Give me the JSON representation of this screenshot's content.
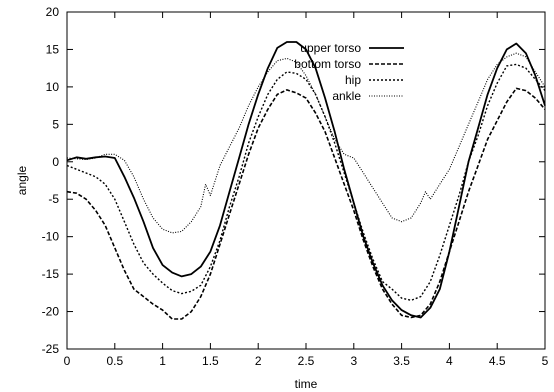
{
  "chart_data": {
    "type": "line",
    "xlabel": "time",
    "ylabel": "angle",
    "xlim": [
      0,
      5
    ],
    "ylim": [
      -25,
      20
    ],
    "xticks": [
      0,
      0.5,
      1,
      1.5,
      2,
      2.5,
      3,
      3.5,
      4,
      4.5,
      5
    ],
    "yticks": [
      -25,
      -20,
      -15,
      -10,
      -5,
      0,
      5,
      10,
      15,
      20
    ],
    "xtick_labels": [
      "0",
      "0.5",
      "1",
      "1.5",
      "2",
      "2.5",
      "3",
      "3.5",
      "4",
      "4.5",
      "5"
    ],
    "ytick_labels": [
      "-25",
      "-20",
      "-15",
      "-10",
      "-5",
      "0",
      "5",
      "10",
      "15",
      "20"
    ],
    "grid": false,
    "legend_position": "top-right",
    "series": [
      {
        "name": "upper torso",
        "style": "solid",
        "x": [
          0,
          0.1,
          0.2,
          0.3,
          0.4,
          0.5,
          0.6,
          0.7,
          0.8,
          0.9,
          1.0,
          1.1,
          1.2,
          1.3,
          1.4,
          1.5,
          1.6,
          1.7,
          1.8,
          1.9,
          2.0,
          2.1,
          2.2,
          2.3,
          2.4,
          2.5,
          2.6,
          2.7,
          2.8,
          2.9,
          3.0,
          3.1,
          3.2,
          3.3,
          3.4,
          3.5,
          3.6,
          3.7,
          3.8,
          3.9,
          4.0,
          4.1,
          4.2,
          4.3,
          4.4,
          4.5,
          4.6,
          4.7,
          4.8,
          4.9,
          5.0
        ],
        "y": [
          0.2,
          0.6,
          0.4,
          0.6,
          0.7,
          0.5,
          -2,
          -4.8,
          -8,
          -11.5,
          -13.8,
          -14.8,
          -15.3,
          -15,
          -14,
          -12,
          -8.5,
          -4,
          0.5,
          5,
          9,
          12.5,
          15.2,
          16,
          16,
          15,
          12.5,
          8.5,
          4,
          -1,
          -5.5,
          -10,
          -13.5,
          -16.5,
          -18.5,
          -19.8,
          -20.5,
          -20.8,
          -19.5,
          -17,
          -12,
          -6,
          0,
          4.5,
          9,
          12.5,
          15,
          15.8,
          14.5,
          11.5,
          7.5
        ]
      },
      {
        "name": "bottom torso",
        "style": "dashed",
        "x": [
          0,
          0.1,
          0.2,
          0.3,
          0.4,
          0.5,
          0.6,
          0.7,
          0.8,
          0.9,
          1.0,
          1.1,
          1.2,
          1.3,
          1.4,
          1.5,
          1.6,
          1.7,
          1.8,
          1.9,
          2.0,
          2.1,
          2.2,
          2.3,
          2.4,
          2.5,
          2.6,
          2.7,
          2.8,
          2.9,
          3.0,
          3.1,
          3.2,
          3.3,
          3.4,
          3.5,
          3.6,
          3.7,
          3.8,
          3.9,
          4.0,
          4.1,
          4.2,
          4.3,
          4.4,
          4.5,
          4.6,
          4.7,
          4.8,
          4.9,
          5.0
        ],
        "y": [
          -4,
          -4.2,
          -5,
          -6.5,
          -8.5,
          -11.5,
          -14.5,
          -17,
          -18,
          -19,
          -19.8,
          -21,
          -21,
          -20,
          -18,
          -15,
          -11,
          -7,
          -3,
          1,
          4.5,
          7,
          9,
          9.6,
          9.2,
          8.5,
          6.5,
          4,
          0.5,
          -3,
          -6.5,
          -10.5,
          -14,
          -17,
          -19,
          -20.5,
          -20.8,
          -20.5,
          -19,
          -16,
          -12,
          -8,
          -4,
          -0.5,
          3,
          5.5,
          8,
          9.8,
          9.5,
          8.5,
          7
        ]
      },
      {
        "name": "hip",
        "style": "dotted",
        "x": [
          0,
          0.1,
          0.2,
          0.3,
          0.4,
          0.5,
          0.6,
          0.7,
          0.8,
          0.9,
          1.0,
          1.1,
          1.2,
          1.3,
          1.4,
          1.5,
          1.6,
          1.7,
          1.8,
          1.9,
          2.0,
          2.1,
          2.2,
          2.3,
          2.4,
          2.5,
          2.6,
          2.7,
          2.8,
          2.9,
          3.0,
          3.1,
          3.2,
          3.3,
          3.4,
          3.5,
          3.6,
          3.7,
          3.8,
          3.9,
          4.0,
          4.1,
          4.2,
          4.3,
          4.4,
          4.5,
          4.6,
          4.7,
          4.8,
          4.9,
          5.0
        ],
        "y": [
          -0.5,
          -1,
          -1.5,
          -2,
          -3,
          -5,
          -8,
          -11,
          -13.5,
          -15,
          -16.2,
          -17.2,
          -17.6,
          -17.3,
          -16.5,
          -14,
          -10.5,
          -6,
          -2,
          2.5,
          6,
          9,
          11,
          12,
          11.8,
          11,
          9,
          6,
          2.5,
          -1.5,
          -5.5,
          -9.5,
          -13,
          -16,
          -17,
          -18.2,
          -18.5,
          -18,
          -16,
          -12.5,
          -8.5,
          -4.5,
          0,
          3.5,
          7.5,
          10.5,
          12.8,
          13,
          12.5,
          11,
          9.5
        ]
      },
      {
        "name": "ankle",
        "style": "fine-dotted",
        "x": [
          0,
          0.1,
          0.2,
          0.3,
          0.4,
          0.5,
          0.6,
          0.7,
          0.8,
          0.9,
          1.0,
          1.1,
          1.2,
          1.3,
          1.4,
          1.45,
          1.5,
          1.55,
          1.6,
          1.7,
          1.8,
          1.9,
          2.0,
          2.1,
          2.2,
          2.3,
          2.4,
          2.5,
          2.6,
          2.7,
          2.8,
          2.9,
          3.0,
          3.1,
          3.2,
          3.3,
          3.4,
          3.5,
          3.6,
          3.7,
          3.75,
          3.8,
          3.9,
          4.0,
          4.1,
          4.2,
          4.3,
          4.4,
          4.5,
          4.6,
          4.7,
          4.8,
          4.9,
          5.0
        ],
        "y": [
          0.5,
          0.4,
          0.3,
          0.5,
          1,
          1,
          0.2,
          -2,
          -5,
          -7.5,
          -9,
          -9.5,
          -9.3,
          -8,
          -6,
          -3,
          -4.5,
          -2.5,
          -0.5,
          2,
          4.5,
          7.5,
          10,
          12,
          13.5,
          13.8,
          13.3,
          11.5,
          9,
          6,
          3,
          1,
          0.5,
          -1.5,
          -3.5,
          -5.5,
          -7.5,
          -8,
          -7.5,
          -5.5,
          -4,
          -5,
          -3,
          -1,
          2,
          5,
          8,
          11,
          13,
          14,
          14.5,
          14,
          12,
          10
        ]
      }
    ]
  }
}
